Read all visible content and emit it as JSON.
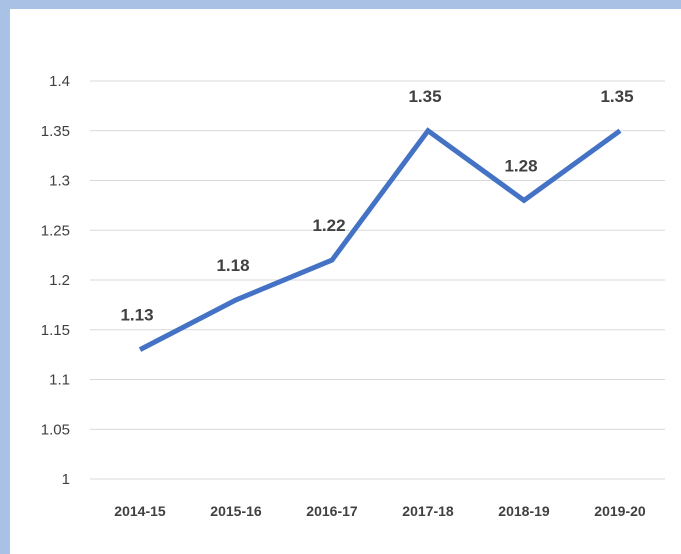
{
  "chart_data": {
    "type": "line",
    "title": "",
    "xlabel": "",
    "ylabel": "",
    "categories": [
      "2014-15",
      "2015-16",
      "2016-17",
      "2017-18",
      "2018-19",
      "2019-20"
    ],
    "series": [
      {
        "values": [
          1.13,
          1.18,
          1.22,
          1.35,
          1.28,
          1.35
        ]
      }
    ],
    "data_labels": [
      "1.13",
      "1.18",
      "1.22",
      "1.35",
      "1.28",
      "1.35"
    ],
    "ylim": [
      1,
      1.4
    ],
    "yticks": [
      "1",
      "1.05",
      "1.1",
      "1.15",
      "1.2",
      "1.25",
      "1.3",
      "1.35",
      "1.4"
    ],
    "grid": true,
    "legend": "none",
    "line_color": "#4472c4",
    "grid_color": "#d9d9d9"
  }
}
